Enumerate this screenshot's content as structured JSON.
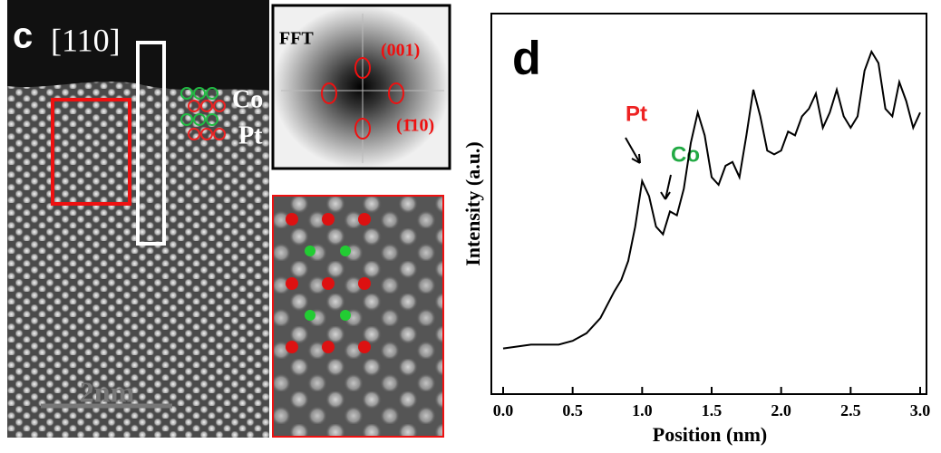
{
  "panel_c": {
    "label": "c",
    "zone_axis": "[110]",
    "co_label": "Co",
    "pt_label": "Pt",
    "scale_bar": "2nm",
    "fft": {
      "title": "FFT",
      "spot_001": "(001)",
      "spot_110": "(1̄10)"
    }
  },
  "chart_data": {
    "type": "line",
    "panel_label": "d",
    "xlabel": "Position (nm)",
    "ylabel": "Intensity (a.u.)",
    "x": [
      0,
      0.2,
      0.4,
      0.5,
      0.6,
      0.7,
      0.8,
      0.85,
      0.9,
      0.95,
      1.0,
      1.05,
      1.1,
      1.15,
      1.2,
      1.25,
      1.3,
      1.35,
      1.4,
      1.45,
      1.5,
      1.55,
      1.6,
      1.65,
      1.7,
      1.75,
      1.8,
      1.85,
      1.9,
      1.95,
      2.0,
      2.05,
      2.1,
      2.15,
      2.2,
      2.25,
      2.3,
      2.35,
      2.4,
      2.45,
      2.5,
      2.55,
      2.6,
      2.65,
      2.7,
      2.75,
      2.8,
      2.85,
      2.9,
      2.95,
      3.0
    ],
    "series": [
      {
        "name": "Intensity",
        "color": "#000000",
        "values": [
          12,
          13,
          13,
          14,
          16,
          20,
          27,
          30,
          35,
          44,
          56,
          52,
          44,
          42,
          48,
          47,
          54,
          66,
          74,
          68,
          57,
          55,
          60,
          61,
          57,
          68,
          80,
          73,
          64,
          63,
          64,
          69,
          68,
          73,
          75,
          79,
          70,
          74,
          80,
          73,
          70,
          73,
          85,
          90,
          87,
          75,
          73,
          82,
          77,
          70,
          74
        ]
      }
    ],
    "xlim": [
      0,
      3
    ],
    "ylim": [
      0,
      100
    ],
    "xticks": [
      {
        "value": 0,
        "label": "0.0"
      },
      0.5,
      {
        "value": 1,
        "label": "1.0"
      },
      1.5,
      {
        "value": 2,
        "label": "2.0"
      },
      2.5,
      {
        "value": 3,
        "label": "3.0"
      }
    ],
    "annotations": [
      {
        "text": "Pt",
        "color": "#ee2222"
      },
      {
        "text": "Co",
        "color": "#22aa44"
      }
    ]
  }
}
